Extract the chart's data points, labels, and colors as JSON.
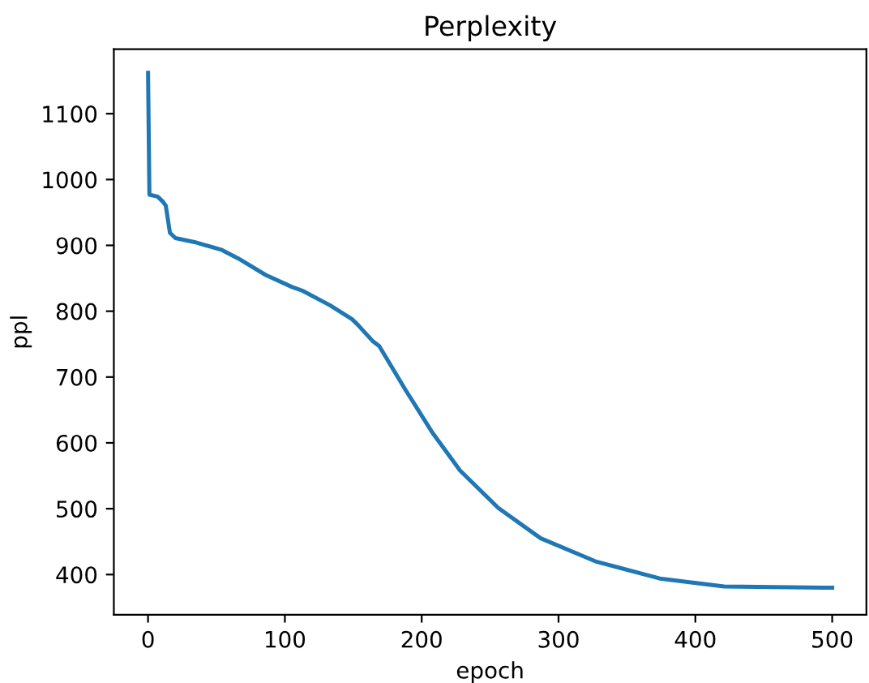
{
  "chart_data": {
    "type": "line",
    "title": "Perplexity",
    "xlabel": "epoch",
    "ylabel": "ppl",
    "series": [
      {
        "color": "#1f77b4",
        "x": [
          0,
          1,
          7,
          11,
          13,
          16,
          20,
          34,
          54,
          66,
          86,
          105,
          113,
          133,
          149,
          153,
          164,
          169,
          188,
          208,
          228,
          256,
          287,
          327,
          374,
          421,
          500
        ],
        "values": [
          1162,
          977,
          974,
          966,
          960,
          919,
          911,
          905,
          893,
          880,
          855,
          837,
          831,
          809,
          788,
          780,
          755,
          747,
          681,
          615,
          558,
          501,
          455,
          420,
          394,
          382,
          380
        ]
      }
    ],
    "xlim": [
      -25,
      525
    ],
    "ylim": [
      339,
      1198
    ],
    "xticks": [
      0,
      100,
      200,
      300,
      400,
      500
    ],
    "yticks": [
      400,
      500,
      600,
      700,
      800,
      900,
      1000,
      1100
    ],
    "grid": false,
    "legend": false
  }
}
